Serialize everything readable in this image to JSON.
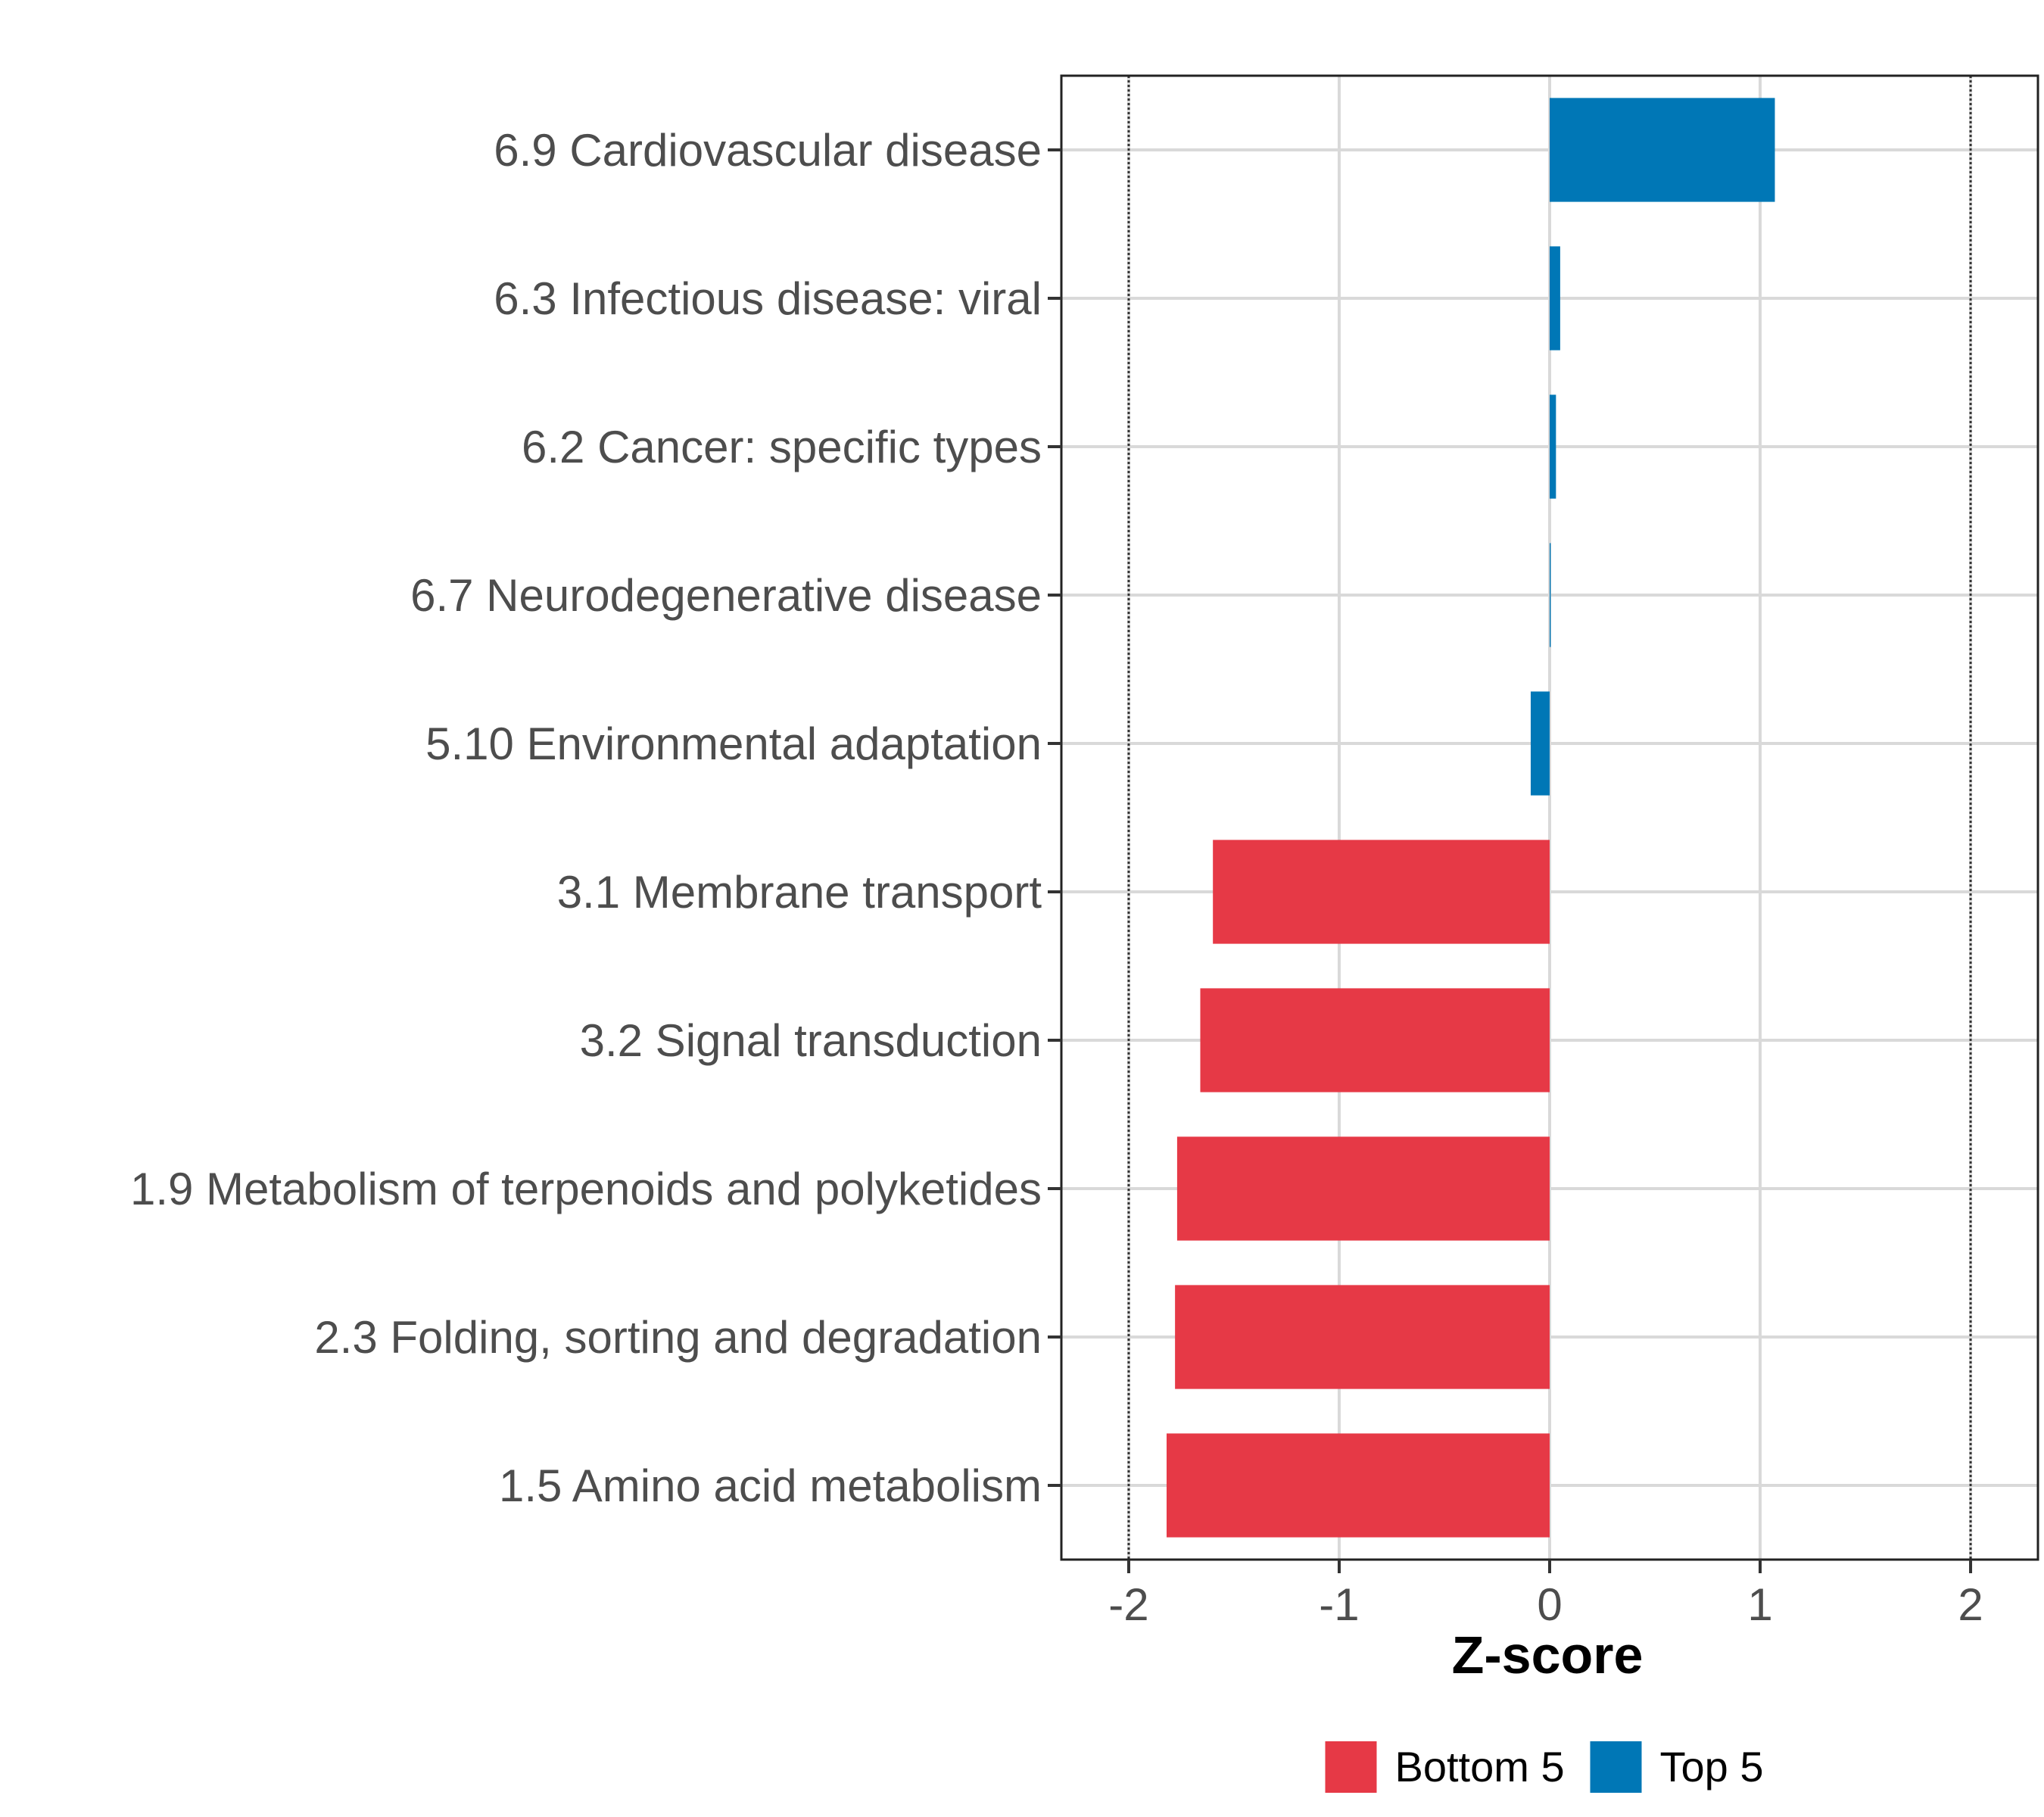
{
  "chart_data": {
    "type": "bar",
    "orientation": "horizontal",
    "categories": [
      "6.9 Cardiovascular disease",
      "6.3 Infectious disease: viral",
      "6.2 Cancer: specific types",
      "6.7 Neurodegenerative disease",
      "5.10 Environmental adaptation",
      "3.1 Membrane transport",
      "3.2 Signal transduction",
      "1.9 Metabolism of terpenoids and polyketides",
      "2.3 Folding, sorting and degradation",
      "1.5 Amino acid metabolism"
    ],
    "values": [
      1.07,
      0.05,
      0.03,
      0.005,
      -0.09,
      -1.6,
      -1.66,
      -1.77,
      -1.78,
      -1.82
    ],
    "groups": [
      "Top 5",
      "Top 5",
      "Top 5",
      "Top 5",
      "Top 5",
      "Bottom 5",
      "Bottom 5",
      "Bottom 5",
      "Bottom 5",
      "Bottom 5"
    ],
    "xlabel": "Z-score",
    "ylabel": "",
    "xlim": [
      -2.32,
      2.32
    ],
    "xticks": [
      -2,
      -1,
      0,
      1,
      2
    ],
    "xtick_labels": [
      "-2",
      "-1",
      "0",
      "1",
      "2"
    ],
    "reference_lines": [
      -2,
      2
    ],
    "grid": true,
    "legend": {
      "position": "bottom",
      "entries": [
        {
          "label": "Bottom 5",
          "color": "#e63946"
        },
        {
          "label": "Top 5",
          "color": "#0077b6"
        }
      ]
    }
  }
}
